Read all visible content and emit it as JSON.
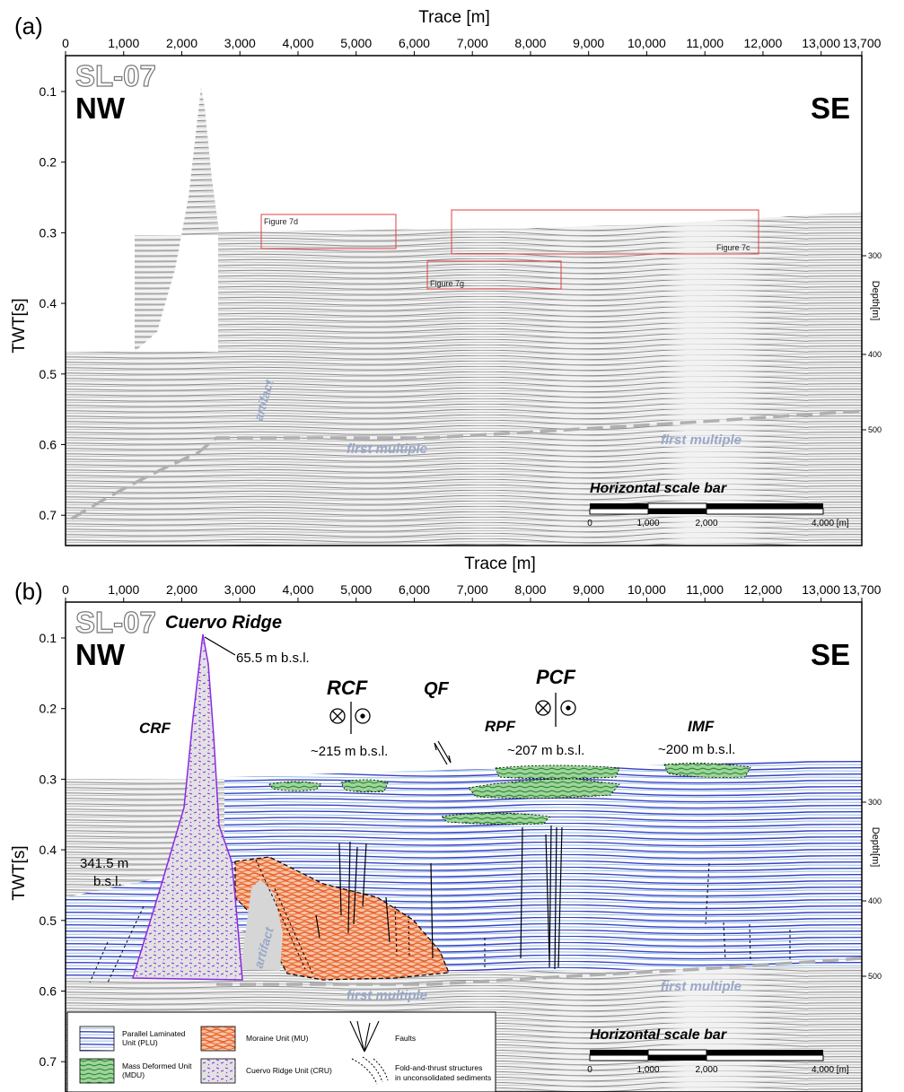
{
  "panel_a": {
    "letter": "(a)",
    "x_title": "Trace [m]",
    "x_ticks": [
      "0",
      "1,000",
      "2,000",
      "3,000",
      "4,000",
      "5,000",
      "6,000",
      "7,000",
      "8,000",
      "9,000",
      "10,000",
      "11,000",
      "12,000",
      "13,000",
      "13,700"
    ],
    "y_title": "TWT[s]",
    "y_ticks": [
      "0.1",
      "0.2",
      "0.3",
      "0.4",
      "0.5",
      "0.6",
      "0.7"
    ],
    "depth_title": "Depth[m]",
    "depth_ticks": [
      "300",
      "400",
      "500"
    ],
    "line_name": "SL-07",
    "left_label": "NW",
    "right_label": "SE",
    "boxes": [
      "Figure 7d",
      "Figure 7c",
      "Figure 7g"
    ],
    "artifact": "artifact",
    "multiple_left": "first multiple",
    "multiple_right": "first multiple",
    "scale_title": "Horizontal scale bar",
    "scale_ticks": [
      "0",
      "1,000",
      "2,000",
      "4,000 [m]"
    ]
  },
  "panel_b": {
    "letter": "(b)",
    "x_title": "Trace [m]",
    "x_ticks": [
      "0",
      "1,000",
      "2,000",
      "3,000",
      "4,000",
      "5,000",
      "6,000",
      "7,000",
      "8,000",
      "9,000",
      "10,000",
      "11,000",
      "12,000",
      "13,000",
      "13,700"
    ],
    "y_title": "TWT[s]",
    "y_ticks": [
      "0.1",
      "0.2",
      "0.3",
      "0.4",
      "0.5",
      "0.6",
      "0.7"
    ],
    "depth_title": "Depth[m]",
    "depth_ticks": [
      "300",
      "400",
      "500"
    ],
    "line_name": "SL-07",
    "ridge_name": "Cuervo Ridge",
    "left_label": "NW",
    "right_label": "SE",
    "peak_depth": "65.5 m b.s.l.",
    "crf": "CRF",
    "rcf": "RCF",
    "qf": "QF",
    "pcf": "PCF",
    "rpf": "RPF",
    "imf": "IMF",
    "depth_rcf": "~215 m b.s.l.",
    "depth_rpf": "~207 m b.s.l.",
    "depth_imf": "~200 m b.s.l.",
    "depth_left_1": "341.5 m",
    "depth_left_2": "b.s.l.",
    "artifact": "artifact",
    "multiple_left": "first multiple",
    "multiple_right": "first multiple",
    "scale_title": "Horizontal scale bar",
    "scale_ticks": [
      "0",
      "1,000",
      "2,000",
      "4,000 [m]"
    ],
    "legend": {
      "plu_1": "Parallel Laminated",
      "plu_2": "Unit (PLU)",
      "mdu_1": "Mass Deformed Unit",
      "mdu_2": "(MDU)",
      "mu": "Moraine Unit (MU)",
      "cru": "Cuervo Ridge Unit (CRU)",
      "faults": "Faults",
      "fold_1": "Fold-and-thrust structures",
      "fold_2": "in unconsolidated sediments"
    }
  },
  "colors": {
    "plu_dark": "#3b3fc4",
    "plu_light": "#8fbfe6",
    "mdu": "#2f8a3a",
    "mu": "#e8622a",
    "cru": "#8a2be2",
    "box": "#e04040",
    "multiple": "#9aa8c8"
  }
}
